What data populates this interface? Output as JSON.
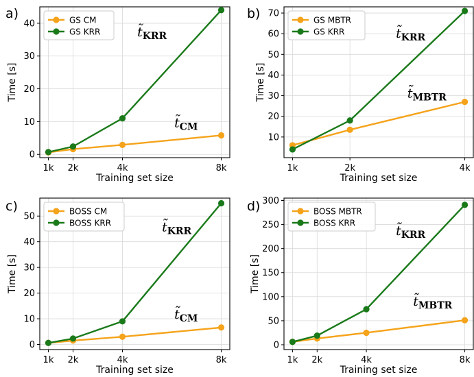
{
  "chart_data": [
    {
      "type": "line",
      "panel": "a)",
      "xlabel": "Training set size",
      "ylabel": "Time [s]",
      "x": [
        1,
        2,
        4,
        8
      ],
      "x_tick_labels": [
        "1k",
        "2k",
        "4k",
        "8k"
      ],
      "ylim": [
        -1,
        45
      ],
      "y_ticks": [
        0,
        10,
        20,
        30,
        40
      ],
      "grid": true,
      "legend": "top-left",
      "series": [
        {
          "name": "GS CM",
          "color": "#f5a31a",
          "values": [
            0.6,
            1.6,
            2.9,
            5.8
          ]
        },
        {
          "name": "GS KRR",
          "color": "#1a7a1a",
          "values": [
            0.7,
            2.4,
            11.0,
            44.0
          ]
        }
      ],
      "annotations": [
        {
          "text": "t̃",
          "sub": "KRR",
          "at": [
            4.6,
            36
          ]
        },
        {
          "text": "t̃",
          "sub": "CM",
          "at": [
            6.1,
            8.3
          ]
        }
      ]
    },
    {
      "type": "line",
      "panel": "b)",
      "xlabel": "Training set size",
      "ylabel": "Time [s]",
      "x": [
        1,
        2,
        4
      ],
      "x_tick_labels": [
        "1k",
        "2k",
        "4k"
      ],
      "ylim": [
        0,
        73
      ],
      "y_ticks": [
        10,
        20,
        30,
        40,
        50,
        60,
        70
      ],
      "grid": true,
      "legend": "top-left",
      "series": [
        {
          "name": "GS MBTR",
          "color": "#f5a31a",
          "values": [
            6.0,
            13.5,
            27.0
          ]
        },
        {
          "name": "GS KRR",
          "color": "#1a7a1a",
          "values": [
            4.0,
            18.0,
            71.0
          ]
        }
      ],
      "annotations": [
        {
          "text": "t̃",
          "sub": "KRR",
          "at": [
            2.8,
            58
          ]
        },
        {
          "text": "t̃",
          "sub": "MBTR",
          "at": [
            3.0,
            29
          ]
        }
      ]
    },
    {
      "type": "line",
      "panel": "c)",
      "xlabel": "Training set size",
      "ylabel": "Time [s]",
      "x": [
        1,
        2,
        4,
        8
      ],
      "x_tick_labels": [
        "1k",
        "2k",
        "4k",
        "8k"
      ],
      "ylim": [
        -2,
        57
      ],
      "y_ticks": [
        0,
        10,
        20,
        30,
        40,
        50
      ],
      "grid": true,
      "legend": "top-left",
      "series": [
        {
          "name": "BOSS CM",
          "color": "#f5a31a",
          "values": [
            0.6,
            1.5,
            3.0,
            6.6
          ]
        },
        {
          "name": "BOSS KRR",
          "color": "#1a7a1a",
          "values": [
            0.6,
            2.3,
            9.0,
            55.0
          ]
        }
      ],
      "annotations": [
        {
          "text": "t̃",
          "sub": "KRR",
          "at": [
            5.6,
            44
          ]
        },
        {
          "text": "t̃",
          "sub": "CM",
          "at": [
            6.1,
            10
          ]
        }
      ]
    },
    {
      "type": "line",
      "panel": "d)",
      "xlabel": "Training set size",
      "ylabel": "Time [s]",
      "x": [
        1,
        2,
        4,
        8
      ],
      "x_tick_labels": [
        "1k",
        "2k",
        "4k",
        "8k"
      ],
      "ylim": [
        -10,
        305
      ],
      "y_ticks": [
        0,
        50,
        100,
        150,
        200,
        250,
        300
      ],
      "grid": true,
      "legend": "top-left",
      "series": [
        {
          "name": "BOSS MBTR",
          "color": "#f5a31a",
          "values": [
            6.0,
            13.0,
            25.0,
            51.0
          ]
        },
        {
          "name": "BOSS KRR",
          "color": "#1a7a1a",
          "values": [
            6.0,
            19.0,
            74.0,
            291.0
          ]
        }
      ],
      "annotations": [
        {
          "text": "t̃",
          "sub": "KRR",
          "at": [
            5.2,
            228
          ]
        },
        {
          "text": "t̃",
          "sub": "MBTR",
          "at": [
            5.9,
            81
          ]
        }
      ]
    }
  ]
}
